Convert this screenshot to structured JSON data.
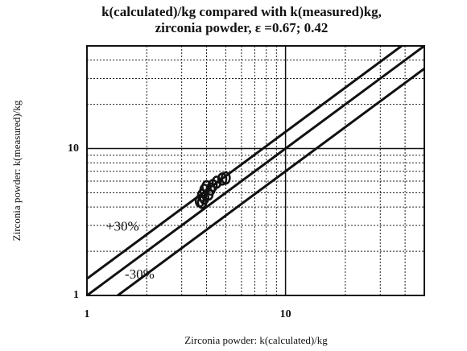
{
  "chart_data": {
    "type": "scatter",
    "title": [
      "k(calculated)/kg  compared  with  k(measured)kg,",
      "zirconia  powder, ε =0.67;  0.42"
    ],
    "xlabel": "Zirconia powder: k(calculated)/kg",
    "ylabel": "Zirconia powder: k(measured)/kg",
    "log_x": true,
    "log_y": true,
    "xlim": [
      1,
      50
    ],
    "ylim": [
      1,
      50
    ],
    "xticks": [
      1,
      10
    ],
    "yticks": [
      1,
      10
    ],
    "xgrid": [
      2,
      3,
      4,
      5,
      6,
      7,
      8,
      9,
      20,
      30,
      40
    ],
    "ygrid": [
      2,
      3,
      4,
      5,
      6,
      7,
      8,
      9,
      20,
      30,
      40
    ],
    "grid": true,
    "series": [
      {
        "type": "scatter",
        "color": "#111111",
        "x": [
          3.7,
          3.8,
          3.9,
          4.0,
          3.8,
          4.1,
          4.3,
          4.5,
          4.8,
          5.0,
          4.2,
          3.9
        ],
        "values": [
          4.4,
          4.8,
          5.2,
          5.5,
          4.3,
          4.9,
          5.6,
          5.9,
          6.2,
          6.3,
          5.3,
          4.6
        ]
      },
      {
        "type": "line",
        "color": "#111111",
        "x": [
          1,
          50
        ],
        "values": [
          1.3,
          65
        ]
      },
      {
        "type": "line",
        "color": "#111111",
        "x": [
          1,
          50
        ],
        "values": [
          1,
          50
        ]
      },
      {
        "type": "line",
        "color": "#111111",
        "x": [
          1,
          50
        ],
        "values": [
          0.7,
          35
        ]
      }
    ],
    "annotations": [
      {
        "text": "+30%",
        "x": 1.25,
        "y": 2.9
      },
      {
        "text": "-30%",
        "x": 1.55,
        "y": 1.37
      }
    ]
  }
}
